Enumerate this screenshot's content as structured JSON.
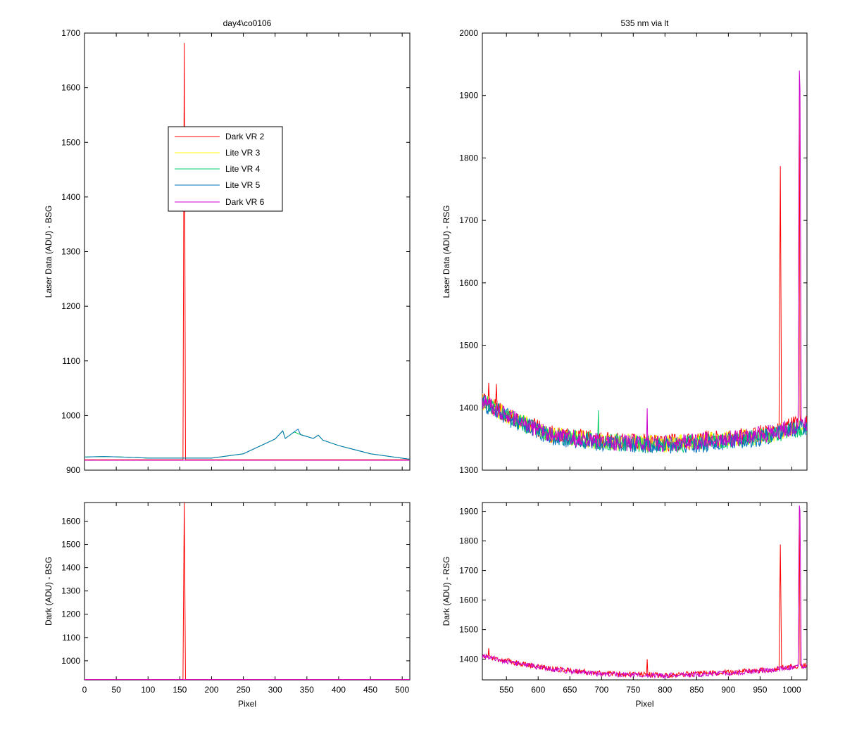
{
  "chart_data": [
    {
      "type": "line",
      "panel": "top-left",
      "title": "day4\\co0106",
      "xlabel": "",
      "ylabel": "Laser Data (ADU) - BSG",
      "xlim": [
        0,
        512
      ],
      "ylim": [
        900,
        1700
      ],
      "xticks": [
        0,
        50,
        100,
        150,
        200,
        250,
        300,
        350,
        400,
        450,
        500
      ],
      "xtick_labels_shown": false,
      "yticks": [
        900,
        1000,
        1100,
        1200,
        1300,
        1400,
        1500,
        1600,
        1700
      ],
      "legend": {
        "placement": "upper-center",
        "entries": [
          "Dark VR 2",
          "Lite VR 3",
          "Lite VR 4",
          "Lite VR 5",
          "Dark VR 6"
        ]
      },
      "series": [
        {
          "name": "Dark VR 2",
          "color": "#ff0000",
          "points": [
            [
              0,
              919
            ],
            [
              150,
              919
            ],
            [
              155,
              919
            ],
            [
              156,
              1310
            ],
            [
              157,
              1682
            ],
            [
              158,
              1300
            ],
            [
              159,
              919
            ],
            [
              512,
              919
            ]
          ]
        },
        {
          "name": "Lite VR 3",
          "color": "#ffff00",
          "points": [
            [
              0,
              924
            ],
            [
              30,
              925
            ],
            [
              60,
              924
            ],
            [
              100,
              922
            ],
            [
              200,
              922
            ],
            [
              250,
              930
            ],
            [
              300,
              957
            ],
            [
              312,
              972
            ],
            [
              316,
              958
            ],
            [
              330,
              970
            ],
            [
              340,
              965
            ],
            [
              360,
              958
            ],
            [
              368,
              964
            ],
            [
              375,
              955
            ],
            [
              400,
              945
            ],
            [
              450,
              930
            ],
            [
              512,
              920
            ]
          ]
        },
        {
          "name": "Lite VR 4",
          "color": "#00cc66",
          "points": [
            [
              0,
              924
            ],
            [
              30,
              925
            ],
            [
              60,
              924
            ],
            [
              100,
              922
            ],
            [
              200,
              922
            ],
            [
              250,
              930
            ],
            [
              300,
              957
            ],
            [
              312,
              972
            ],
            [
              316,
              958
            ],
            [
              330,
              970
            ],
            [
              340,
              965
            ],
            [
              360,
              958
            ],
            [
              368,
              964
            ],
            [
              375,
              955
            ],
            [
              400,
              945
            ],
            [
              450,
              930
            ],
            [
              512,
              920
            ]
          ]
        },
        {
          "name": "Lite VR 5",
          "color": "#0070c0",
          "points": [
            [
              0,
              924
            ],
            [
              30,
              925
            ],
            [
              60,
              924
            ],
            [
              100,
              922
            ],
            [
              200,
              922
            ],
            [
              250,
              930
            ],
            [
              300,
              957
            ],
            [
              312,
              972
            ],
            [
              316,
              958
            ],
            [
              336,
              975
            ],
            [
              340,
              965
            ],
            [
              360,
              958
            ],
            [
              368,
              964
            ],
            [
              375,
              955
            ],
            [
              400,
              945
            ],
            [
              450,
              930
            ],
            [
              512,
              920
            ]
          ]
        },
        {
          "name": "Dark VR 6",
          "color": "#cc00cc",
          "points": [
            [
              0,
              918
            ],
            [
              512,
              918
            ]
          ]
        }
      ]
    },
    {
      "type": "line",
      "panel": "top-right",
      "title": "535 nm via lt",
      "xlabel": "",
      "ylabel": "Laser Data (ADU) - RSG",
      "xlim": [
        512,
        1024
      ],
      "ylim": [
        1300,
        2000
      ],
      "xticks": [
        550,
        600,
        650,
        700,
        750,
        800,
        850,
        900,
        950,
        1000
      ],
      "xtick_labels_shown": false,
      "yticks": [
        1300,
        1400,
        1500,
        1600,
        1700,
        1800,
        1900,
        2000
      ],
      "noise_amplitude": 14,
      "series": [
        {
          "name": "Dark VR 2",
          "color": "#ff0000",
          "baseline": [
            [
              512,
              1412
            ],
            [
              560,
              1385
            ],
            [
              620,
              1358
            ],
            [
              700,
              1348
            ],
            [
              800,
              1343
            ],
            [
              900,
              1352
            ],
            [
              960,
              1360
            ],
            [
              1024,
              1378
            ]
          ],
          "spikes": [
            [
              522,
              1440
            ],
            [
              534,
              1438
            ],
            [
              981,
              1595
            ],
            [
              982,
              1787
            ],
            [
              983,
              1575
            ],
            [
              1011,
              1660
            ],
            [
              1012,
              1900
            ]
          ]
        },
        {
          "name": "Lite VR 3",
          "color": "#ffff00",
          "baseline": [
            [
              512,
              1410
            ],
            [
              560,
              1383
            ],
            [
              620,
              1357
            ],
            [
              700,
              1346
            ],
            [
              800,
              1342
            ],
            [
              900,
              1350
            ],
            [
              960,
              1356
            ],
            [
              1024,
              1372
            ]
          ],
          "spikes": []
        },
        {
          "name": "Lite VR 4",
          "color": "#00cc66",
          "baseline": [
            [
              512,
              1409
            ],
            [
              560,
              1382
            ],
            [
              620,
              1356
            ],
            [
              700,
              1345
            ],
            [
              800,
              1340
            ],
            [
              900,
              1348
            ],
            [
              960,
              1355
            ],
            [
              1024,
              1368
            ]
          ],
          "spikes": [
            [
              695,
              1396
            ]
          ]
        },
        {
          "name": "Lite VR 5",
          "color": "#0070c0",
          "baseline": [
            [
              512,
              1408
            ],
            [
              560,
              1380
            ],
            [
              620,
              1354
            ],
            [
              700,
              1343
            ],
            [
              800,
              1338
            ],
            [
              900,
              1345
            ],
            [
              960,
              1353
            ],
            [
              1024,
              1370
            ]
          ],
          "spikes": []
        },
        {
          "name": "Dark VR 6",
          "color": "#cc00cc",
          "baseline": [
            [
              512,
              1410
            ],
            [
              560,
              1382
            ],
            [
              620,
              1356
            ],
            [
              700,
              1346
            ],
            [
              800,
              1342
            ],
            [
              900,
              1350
            ],
            [
              960,
              1358
            ],
            [
              1024,
              1376
            ]
          ],
          "spikes": [
            [
              772,
              1399
            ],
            [
              1011,
              1658
            ],
            [
              1012,
              1940
            ],
            [
              1013,
              1910
            ],
            [
              1014,
              1650
            ]
          ]
        }
      ]
    },
    {
      "type": "line",
      "panel": "bottom-left",
      "title": "",
      "xlabel": "Pixel",
      "ylabel": "Dark (ADU) - BSG",
      "xlim": [
        0,
        512
      ],
      "ylim": [
        918,
        1680
      ],
      "xticks": [
        0,
        50,
        100,
        150,
        200,
        250,
        300,
        350,
        400,
        450,
        500
      ],
      "xtick_labels_shown": true,
      "yticks": [
        1000,
        1100,
        1200,
        1300,
        1400,
        1500,
        1600
      ],
      "series": [
        {
          "name": "Dark VR 2",
          "color": "#ff0000",
          "points": [
            [
              0,
              919
            ],
            [
              155,
              919
            ],
            [
              156,
              1310
            ],
            [
              157,
              1682
            ],
            [
              158,
              1300
            ],
            [
              159,
              919
            ],
            [
              512,
              919
            ]
          ]
        },
        {
          "name": "Dark VR 6",
          "color": "#cc00cc",
          "points": [
            [
              0,
              919
            ],
            [
              512,
              919
            ]
          ]
        }
      ]
    },
    {
      "type": "line",
      "panel": "bottom-right",
      "title": "",
      "xlabel": "Pixel",
      "ylabel": "Dark (ADU) - RSG",
      "xlim": [
        512,
        1024
      ],
      "ylim": [
        1330,
        1930
      ],
      "xticks": [
        550,
        600,
        650,
        700,
        750,
        800,
        850,
        900,
        950,
        1000
      ],
      "xtick_labels_shown": true,
      "yticks": [
        1400,
        1500,
        1600,
        1700,
        1800,
        1900
      ],
      "noise_amplitude": 9,
      "series": [
        {
          "name": "Dark VR 2",
          "color": "#ff0000",
          "baseline": [
            [
              512,
              1412
            ],
            [
              560,
              1390
            ],
            [
              620,
              1368
            ],
            [
              700,
              1352
            ],
            [
              800,
              1346
            ],
            [
              900,
              1355
            ],
            [
              960,
              1364
            ],
            [
              1024,
              1380
            ]
          ],
          "spikes": [
            [
              522,
              1437
            ],
            [
              772,
              1400
            ],
            [
              981,
              1595
            ],
            [
              982,
              1788
            ],
            [
              983,
              1575
            ],
            [
              1011,
              1660
            ],
            [
              1012,
              1900
            ]
          ]
        },
        {
          "name": "Dark VR 6",
          "color": "#cc00cc",
          "baseline": [
            [
              512,
              1410
            ],
            [
              560,
              1388
            ],
            [
              620,
              1366
            ],
            [
              700,
              1350
            ],
            [
              800,
              1344
            ],
            [
              900,
              1353
            ],
            [
              960,
              1362
            ],
            [
              1024,
              1378
            ]
          ],
          "spikes": [
            [
              1011,
              1655
            ],
            [
              1012,
              1920
            ],
            [
              1013,
              1900
            ],
            [
              1014,
              1650
            ]
          ]
        }
      ]
    }
  ]
}
